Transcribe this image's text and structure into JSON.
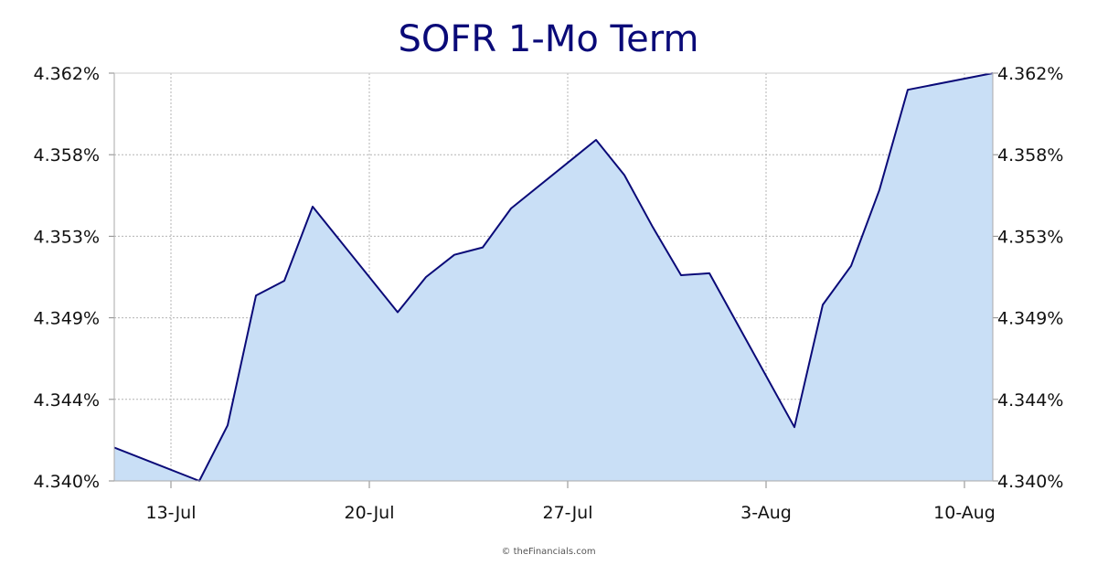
{
  "chart_data": {
    "type": "area",
    "title": "SOFR 1-Mo Term",
    "xlabel": "",
    "ylabel": "",
    "x_tick_labels": [
      "13-Jul",
      "20-Jul",
      "27-Jul",
      "3-Aug",
      "10-Aug"
    ],
    "y_tick_labels": [
      "4.340%",
      "4.344%",
      "4.349%",
      "4.353%",
      "4.358%",
      "4.362%"
    ],
    "ylim": [
      4.34,
      4.362
    ],
    "x_range_days": [
      -2,
      29
    ],
    "grid": true,
    "legend": "none",
    "x": [
      -2,
      1,
      2,
      3,
      4,
      5,
      8,
      9,
      10,
      11,
      12,
      15,
      16,
      17,
      18,
      19,
      22,
      23,
      24,
      25,
      26,
      29
    ],
    "series": [
      {
        "values": [
          4.3418,
          4.34,
          4.343,
          4.35,
          4.3508,
          4.3548,
          4.3491,
          4.351,
          4.3522,
          4.3526,
          4.3547,
          4.3584,
          4.3565,
          4.3537,
          4.3511,
          4.3512,
          4.3429,
          4.3495,
          4.3516,
          4.3557,
          4.3611,
          4.362
        ]
      }
    ],
    "colors": {
      "line": "#0a0a78",
      "fill": "#c9dff6",
      "grid": "#b4b4b4",
      "title": "#0a0a78"
    }
  },
  "footer": {
    "credit": "© theFinancials.com"
  }
}
